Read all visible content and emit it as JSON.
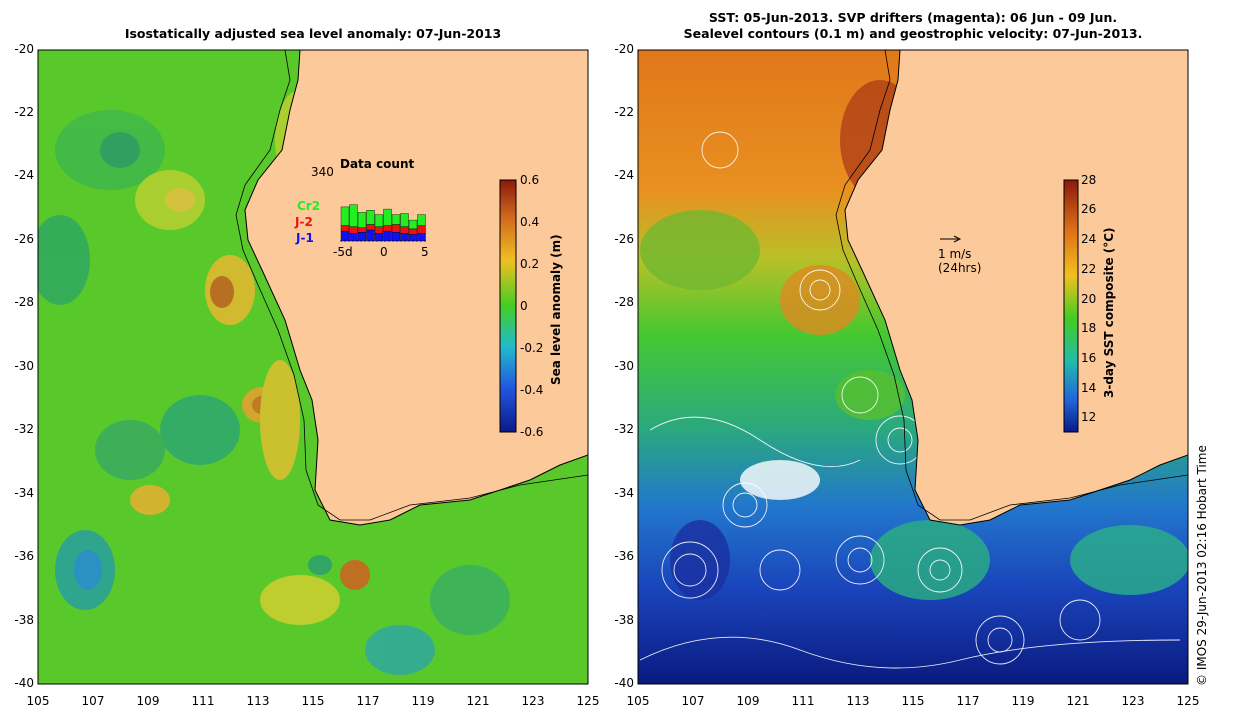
{
  "left_panel": {
    "title": "Isostatically adjusted sea level anomaly: 07-Jun-2013",
    "colorbar_label": "Sea level anomaly (m)",
    "colorbar_ticks": [
      "0.6",
      "0.4",
      "0.2",
      "0",
      "-0.2",
      "-0.4",
      "-0.6"
    ],
    "inset": {
      "title": "Data count",
      "max_label": "340",
      "series": [
        {
          "name": "Cr2",
          "color": "#22ee22"
        },
        {
          "name": "J-2",
          "color": "#ee1111"
        },
        {
          "name": "J-1",
          "color": "#1111ee"
        }
      ],
      "x_ticks": [
        "-5d",
        "0",
        "5"
      ]
    }
  },
  "right_panel": {
    "title_line1": "SST: 05-Jun-2013. SVP drifters (magenta): 06 Jun - 09 Jun.",
    "title_line2": "Sealevel contours (0.1 m) and geostrophic velocity: 07-Jun-2013.",
    "colorbar_label": "3-day SST composite (°C)",
    "colorbar_ticks": [
      "28",
      "26",
      "24",
      "22",
      "20",
      "18",
      "16",
      "14",
      "12"
    ],
    "velocity_scale_label": "1 m/s",
    "velocity_scale_sub": "(24hrs)"
  },
  "axes": {
    "lat_ticks": [
      "-20",
      "-22",
      "-24",
      "-26",
      "-28",
      "-30",
      "-32",
      "-34",
      "-36",
      "-38",
      "-40"
    ],
    "lon_ticks": [
      "105",
      "107",
      "109",
      "111",
      "113",
      "115",
      "117",
      "119",
      "121",
      "123",
      "125"
    ]
  },
  "credit": "© IMOS 29-Jun-2013 02:16 Hobart Time",
  "colors": {
    "land": "#fcc99b",
    "ocean_mid": "#55cc22",
    "coast": "#000000"
  }
}
